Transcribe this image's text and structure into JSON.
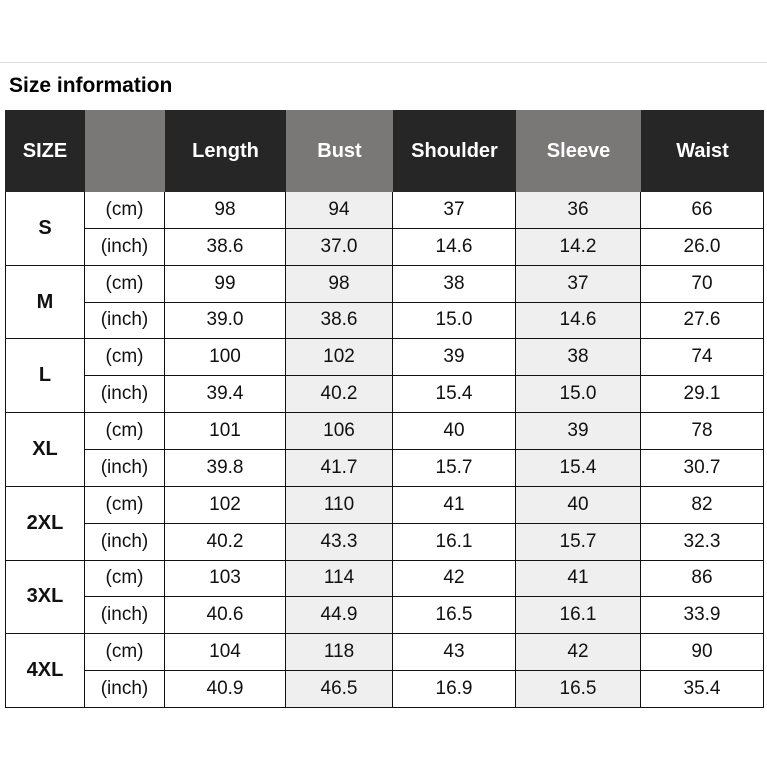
{
  "header": {
    "title": "Size information"
  },
  "table": {
    "headers": [
      "SIZE",
      "Length",
      "Bust",
      "Shoulder",
      "Sleeve",
      "Waist"
    ],
    "sizes": [
      {
        "name": "S",
        "rows": [
          {
            "unit": "(cm)",
            "values": [
              "98",
              "94",
              "37",
              "36",
              "66"
            ]
          },
          {
            "unit": "(inch)",
            "values": [
              "38.6",
              "37.0",
              "14.6",
              "14.2",
              "26.0"
            ]
          }
        ]
      },
      {
        "name": "M",
        "rows": [
          {
            "unit": "(cm)",
            "values": [
              "99",
              "98",
              "38",
              "37",
              "70"
            ]
          },
          {
            "unit": "(inch)",
            "values": [
              "39.0",
              "38.6",
              "15.0",
              "14.6",
              "27.6"
            ]
          }
        ]
      },
      {
        "name": "L",
        "rows": [
          {
            "unit": "(cm)",
            "values": [
              "100",
              "102",
              "39",
              "38",
              "74"
            ]
          },
          {
            "unit": "(inch)",
            "values": [
              "39.4",
              "40.2",
              "15.4",
              "15.0",
              "29.1"
            ]
          }
        ]
      },
      {
        "name": "XL",
        "rows": [
          {
            "unit": "(cm)",
            "values": [
              "101",
              "106",
              "40",
              "39",
              "78"
            ]
          },
          {
            "unit": "(inch)",
            "values": [
              "39.8",
              "41.7",
              "15.7",
              "15.4",
              "30.7"
            ]
          }
        ]
      },
      {
        "name": "2XL",
        "rows": [
          {
            "unit": "(cm)",
            "values": [
              "102",
              "110",
              "41",
              "40",
              "82"
            ]
          },
          {
            "unit": "(inch)",
            "values": [
              "40.2",
              "43.3",
              "16.1",
              "15.7",
              "32.3"
            ]
          }
        ]
      },
      {
        "name": "3XL",
        "rows": [
          {
            "unit": "(cm)",
            "values": [
              "103",
              "114",
              "42",
              "41",
              "86"
            ]
          },
          {
            "unit": "(inch)",
            "values": [
              "40.6",
              "44.9",
              "16.5",
              "16.1",
              "33.9"
            ]
          }
        ]
      },
      {
        "name": "4XL",
        "rows": [
          {
            "unit": "(cm)",
            "values": [
              "104",
              "118",
              "43",
              "42",
              "90"
            ]
          },
          {
            "unit": "(inch)",
            "values": [
              "40.9",
              "46.5",
              "16.9",
              "16.5",
              "35.4"
            ]
          }
        ]
      }
    ]
  }
}
